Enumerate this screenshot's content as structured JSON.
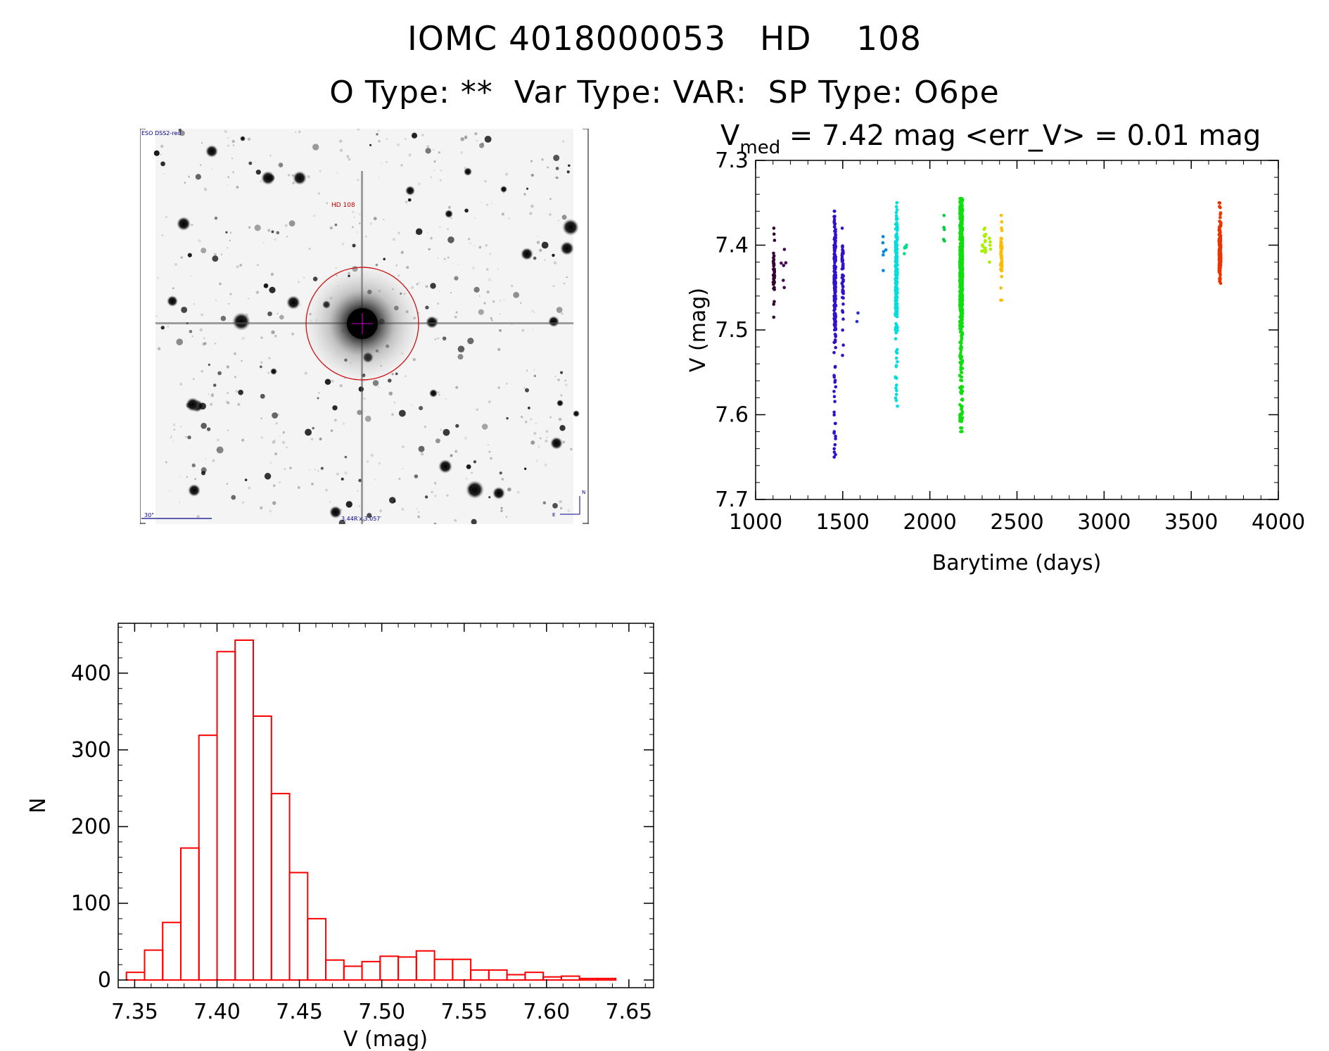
{
  "header": {
    "line1": "IOMC 4018000053   HD    108",
    "line2": "O Type: **  Var Type: VAR:  SP Type: O6pe"
  },
  "image_panel": {
    "survey_label": "ESO DSS2-red",
    "target_label": "HD 108",
    "scale_label": "30\"",
    "fov_label": "3.44R′x 3.057′",
    "north_label": "N",
    "east_label": "E"
  },
  "colors": {
    "histogram": "#ff0000",
    "circle": "#cc0000",
    "labels": "#000088"
  },
  "chart_data": [
    {
      "type": "scatter",
      "title_prefix": "V",
      "title_subscript": "med",
      "title_rest": " = 7.42 mag <err_V> = 0.01 mag",
      "xlabel": "Barytime (days)",
      "ylabel": "V (mag)",
      "xlim": [
        1000,
        4000
      ],
      "ylim": [
        7.7,
        7.3
      ],
      "y_inverted": true,
      "xticks": [
        1000,
        1500,
        2000,
        2500,
        3000,
        3500,
        4000
      ],
      "yticks": [
        7.3,
        7.4,
        7.5,
        7.6,
        7.7
      ],
      "grid": false,
      "clusters": [
        {
          "x": 1105,
          "xw": 8,
          "ymin": 7.38,
          "ymax": 7.485,
          "center": 7.43,
          "n": 40,
          "color": "#330033"
        },
        {
          "x": 1160,
          "xw": 80,
          "ymin": 7.405,
          "ymax": 7.45,
          "center": 7.42,
          "n": 6,
          "color": "#440055"
        },
        {
          "x": 1455,
          "xw": 10,
          "ymin": 7.36,
          "ymax": 7.65,
          "center": 7.44,
          "n": 200,
          "color": "#3311cc"
        },
        {
          "x": 1500,
          "xw": 8,
          "ymin": 7.38,
          "ymax": 7.53,
          "center": 7.44,
          "n": 50,
          "color": "#3311cc"
        },
        {
          "x": 1585,
          "xw": 8,
          "ymin": 7.48,
          "ymax": 7.49,
          "center": 7.485,
          "n": 2,
          "color": "#2233cc"
        },
        {
          "x": 1740,
          "xw": 40,
          "ymin": 7.39,
          "ymax": 7.43,
          "center": 7.41,
          "n": 6,
          "color": "#0088dd"
        },
        {
          "x": 1808,
          "xw": 12,
          "ymin": 7.35,
          "ymax": 7.59,
          "center": 7.43,
          "n": 190,
          "color": "#00dddd"
        },
        {
          "x": 1860,
          "xw": 14,
          "ymin": 7.4,
          "ymax": 7.41,
          "center": 7.405,
          "n": 5,
          "color": "#00dd88"
        },
        {
          "x": 2080,
          "xw": 10,
          "ymin": 7.365,
          "ymax": 7.395,
          "center": 7.38,
          "n": 5,
          "color": "#00cc44"
        },
        {
          "x": 2180,
          "xw": 16,
          "ymin": 7.345,
          "ymax": 7.62,
          "center": 7.43,
          "n": 650,
          "color": "#11dd11"
        },
        {
          "x": 2320,
          "xw": 60,
          "ymin": 7.38,
          "ymax": 7.42,
          "center": 7.4,
          "n": 20,
          "color": "#aaee00"
        },
        {
          "x": 2410,
          "xw": 8,
          "ymin": 7.365,
          "ymax": 7.465,
          "center": 7.41,
          "n": 45,
          "color": "#ffbb00"
        },
        {
          "x": 3665,
          "xw": 10,
          "ymin": 7.35,
          "ymax": 7.445,
          "center": 7.41,
          "n": 200,
          "color": "#ee3300"
        }
      ]
    },
    {
      "type": "bar",
      "subtype": "histogram",
      "xlabel": "V (mag)",
      "ylabel": "N",
      "xlim": [
        7.34,
        7.665
      ],
      "ylim": [
        -10,
        465
      ],
      "xticks": [
        7.35,
        7.4,
        7.45,
        7.5,
        7.55,
        7.6,
        7.65
      ],
      "xtick_labels": [
        "7.35",
        "7.40",
        "7.45",
        "7.50",
        "7.55",
        "7.60",
        "7.65"
      ],
      "yticks": [
        0,
        100,
        200,
        300,
        400
      ],
      "bin_start": 7.345,
      "bin_width": 0.011,
      "values": [
        10,
        39,
        75,
        172,
        319,
        428,
        443,
        344,
        243,
        140,
        80,
        26,
        18,
        24,
        31,
        30,
        38,
        27,
        27,
        13,
        13,
        7,
        10,
        4,
        5,
        2,
        2,
        0
      ]
    }
  ]
}
